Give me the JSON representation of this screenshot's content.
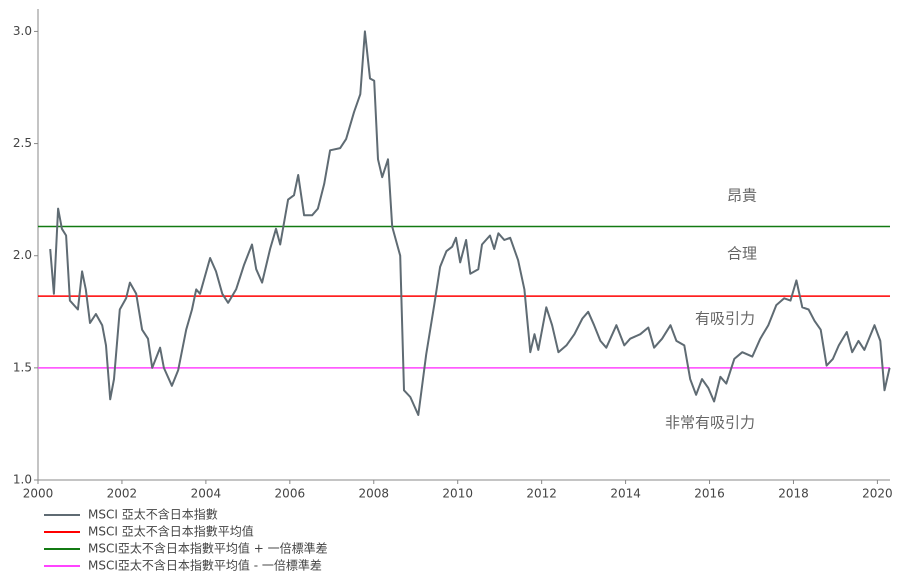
{
  "chart_data": {
    "type": "line",
    "series": [
      {
        "name": "MSCI 亞太不含日本指數",
        "color": "#5f6b73",
        "x": [
          2000.29,
          2000.38,
          2000.48,
          2000.57,
          2000.67,
          2000.76,
          2000.95,
          2001.05,
          2001.14,
          2001.24,
          2001.38,
          2001.53,
          2001.62,
          2001.72,
          2001.81,
          2001.95,
          2002.1,
          2002.19,
          2002.34,
          2002.48,
          2002.62,
          2002.72,
          2002.91,
          2003.0,
          2003.19,
          2003.34,
          2003.53,
          2003.67,
          2003.77,
          2003.86,
          2004.1,
          2004.24,
          2004.39,
          2004.53,
          2004.72,
          2004.91,
          2005.1,
          2005.2,
          2005.34,
          2005.53,
          2005.67,
          2005.77,
          2005.96,
          2006.1,
          2006.2,
          2006.34,
          2006.53,
          2006.67,
          2006.82,
          2006.96,
          2007.2,
          2007.34,
          2007.53,
          2007.68,
          2007.79,
          2007.91,
          2008.01,
          2008.1,
          2008.2,
          2008.34,
          2008.44,
          2008.63,
          2008.72,
          2008.87,
          2009.06,
          2009.25,
          2009.44,
          2009.58,
          2009.73,
          2009.87,
          2009.96,
          2010.06,
          2010.2,
          2010.3,
          2010.49,
          2010.58,
          2010.77,
          2010.87,
          2010.97,
          2011.11,
          2011.25,
          2011.44,
          2011.59,
          2011.73,
          2011.83,
          2011.92,
          2012.11,
          2012.25,
          2012.4,
          2012.59,
          2012.78,
          2012.97,
          2013.11,
          2013.25,
          2013.4,
          2013.54,
          2013.78,
          2013.97,
          2014.11,
          2014.35,
          2014.54,
          2014.68,
          2014.87,
          2015.07,
          2015.21,
          2015.4,
          2015.54,
          2015.68,
          2015.82,
          2015.97,
          2016.11,
          2016.26,
          2016.4,
          2016.59,
          2016.78,
          2017.02,
          2017.21,
          2017.4,
          2017.59,
          2017.78,
          2017.93,
          2018.07,
          2018.21,
          2018.36,
          2018.5,
          2018.65,
          2018.79,
          2018.94,
          2019.08,
          2019.27,
          2019.4,
          2019.55,
          2019.69,
          2019.93,
          2020.07,
          2020.17,
          2020.29
        ],
        "values": [
          2.03,
          1.83,
          2.21,
          2.12,
          2.09,
          1.8,
          1.76,
          1.93,
          1.85,
          1.7,
          1.74,
          1.69,
          1.6,
          1.36,
          1.45,
          1.76,
          1.81,
          1.88,
          1.83,
          1.67,
          1.63,
          1.5,
          1.59,
          1.5,
          1.42,
          1.49,
          1.67,
          1.76,
          1.85,
          1.83,
          1.99,
          1.93,
          1.83,
          1.79,
          1.85,
          1.96,
          2.05,
          1.94,
          1.88,
          2.03,
          2.12,
          2.05,
          2.25,
          2.27,
          2.36,
          2.18,
          2.18,
          2.21,
          2.32,
          2.47,
          2.48,
          2.52,
          2.64,
          2.72,
          3.0,
          2.79,
          2.78,
          2.43,
          2.35,
          2.43,
          2.13,
          2.0,
          1.4,
          1.37,
          1.29,
          1.56,
          1.78,
          1.95,
          2.02,
          2.04,
          2.08,
          1.97,
          2.07,
          1.92,
          1.94,
          2.05,
          2.09,
          2.03,
          2.1,
          2.07,
          2.08,
          1.98,
          1.85,
          1.57,
          1.65,
          1.58,
          1.77,
          1.69,
          1.57,
          1.6,
          1.65,
          1.72,
          1.75,
          1.69,
          1.62,
          1.59,
          1.69,
          1.6,
          1.63,
          1.65,
          1.68,
          1.59,
          1.63,
          1.69,
          1.62,
          1.6,
          1.45,
          1.38,
          1.45,
          1.41,
          1.35,
          1.46,
          1.43,
          1.54,
          1.57,
          1.55,
          1.63,
          1.69,
          1.78,
          1.81,
          1.8,
          1.89,
          1.77,
          1.76,
          1.71,
          1.67,
          1.51,
          1.54,
          1.6,
          1.66,
          1.57,
          1.62,
          1.58,
          1.69,
          1.62,
          1.4,
          1.5
        ]
      }
    ],
    "reference_lines": [
      {
        "name": "MSCI 亞太不含日本指數平均值",
        "color": "#ff0000",
        "value": 1.82
      },
      {
        "name": "MSCI亞太不含日本指數平均值 + 一倍標準差",
        "color": "#137a13",
        "value": 2.13
      },
      {
        "name": "MSCI亞太不含日本指數平均值 - 一倍標準差",
        "color": "#ff44ff",
        "value": 1.5
      }
    ],
    "annotations": [
      "昂貴",
      "合理",
      "有吸引力",
      "非常有吸引力"
    ],
    "xlim": [
      2000,
      2020.3
    ],
    "xticks": [
      2000,
      2002,
      2004,
      2006,
      2008,
      2010,
      2012,
      2014,
      2016,
      2018,
      2020
    ],
    "ylim": [
      1.0,
      3.1
    ],
    "yticks": [
      {
        "value": 1.0,
        "label": "1.0"
      },
      {
        "value": 1.5,
        "label": "1.5"
      },
      {
        "value": 2.0,
        "label": "2.0"
      },
      {
        "value": 2.5,
        "label": "2.5"
      },
      {
        "value": 3.0,
        "label": "3.0"
      }
    ],
    "grid": false,
    "legend": "bottom-left"
  }
}
